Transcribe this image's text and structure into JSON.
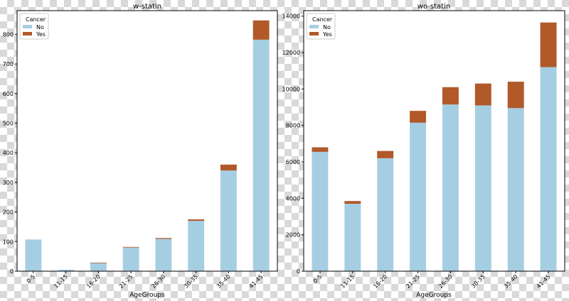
{
  "colors": {
    "No": "#a6cee3",
    "Yes": "#b15928",
    "frame": "#000000",
    "panel_bg": "#ffffff"
  },
  "chart_data": [
    {
      "type": "bar",
      "stacked": true,
      "title": "w-statin",
      "xlabel": "AgeGroups",
      "ylabel": "",
      "categories": [
        "0-5",
        "11-15",
        "16-20",
        "21-25",
        "26-30",
        "30-35",
        "35-40",
        "41-45"
      ],
      "series": [
        {
          "name": "No",
          "values": [
            107,
            5,
            27,
            80,
            109,
            170,
            340,
            782
          ]
        },
        {
          "name": "Yes",
          "values": [
            0,
            0,
            2,
            2,
            3,
            5,
            20,
            65
          ]
        }
      ],
      "ylim": [
        0,
        880
      ],
      "yticks": [
        0,
        100,
        200,
        300,
        400,
        500,
        600,
        700,
        800
      ],
      "legend": {
        "title": "Cancer",
        "position": "top-left"
      },
      "grid": false
    },
    {
      "type": "bar",
      "stacked": true,
      "title": "wo-statin",
      "xlabel": "AgeGroups",
      "ylabel": "",
      "categories": [
        "0-5",
        "11-15",
        "16-20",
        "21-25",
        "26-30",
        "30-35",
        "35-40",
        "41-45"
      ],
      "series": [
        {
          "name": "No",
          "values": [
            6550,
            3700,
            6200,
            8150,
            9150,
            9100,
            8950,
            11200
          ]
        },
        {
          "name": "Yes",
          "values": [
            250,
            150,
            400,
            650,
            950,
            1200,
            1450,
            2450
          ]
        }
      ],
      "ylim": [
        0,
        14300
      ],
      "yticks": [
        0,
        2000,
        4000,
        6000,
        8000,
        10000,
        12000,
        14000
      ],
      "legend": {
        "title": "Cancer",
        "position": "top-left"
      },
      "grid": false
    }
  ]
}
